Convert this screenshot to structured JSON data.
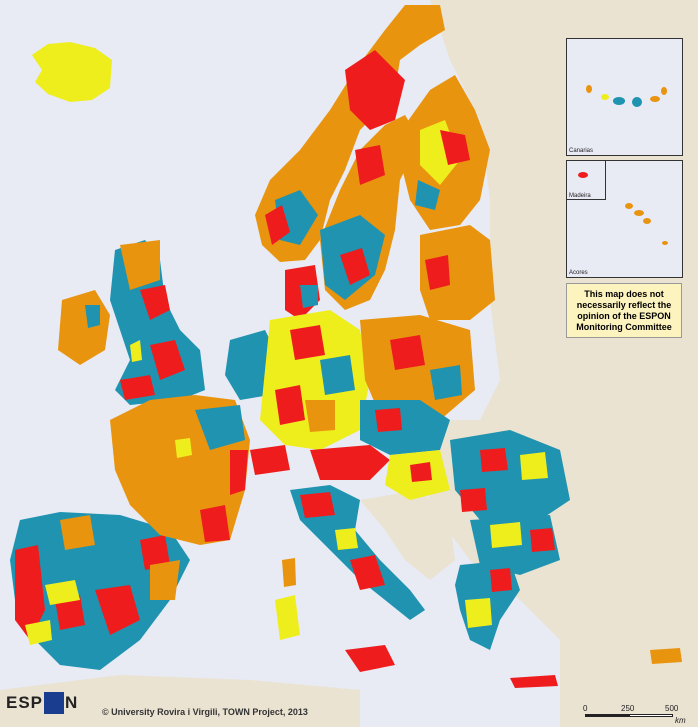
{
  "disclaimer": "This map does not necessarily reflect the opinion of the ESPON Monitoring Committee",
  "copyright": "© University Rovira i Virgili, TOWN Project, 2013",
  "logo_text": {
    "left": "ESP",
    "right": "N"
  },
  "insets": {
    "canarias": "Canarias",
    "madeira": "Madeira",
    "acores": "Acores"
  },
  "scale": {
    "t0": "0",
    "t1": "250",
    "t2": "500",
    "unit": "km"
  },
  "colors": {
    "sea": "#e8eaf4",
    "non_espon_land": "#eae3d2",
    "orange": "#e8940f",
    "red": "#ee1c1c",
    "teal": "#1f93b0",
    "yellow": "#eeee1d"
  }
}
